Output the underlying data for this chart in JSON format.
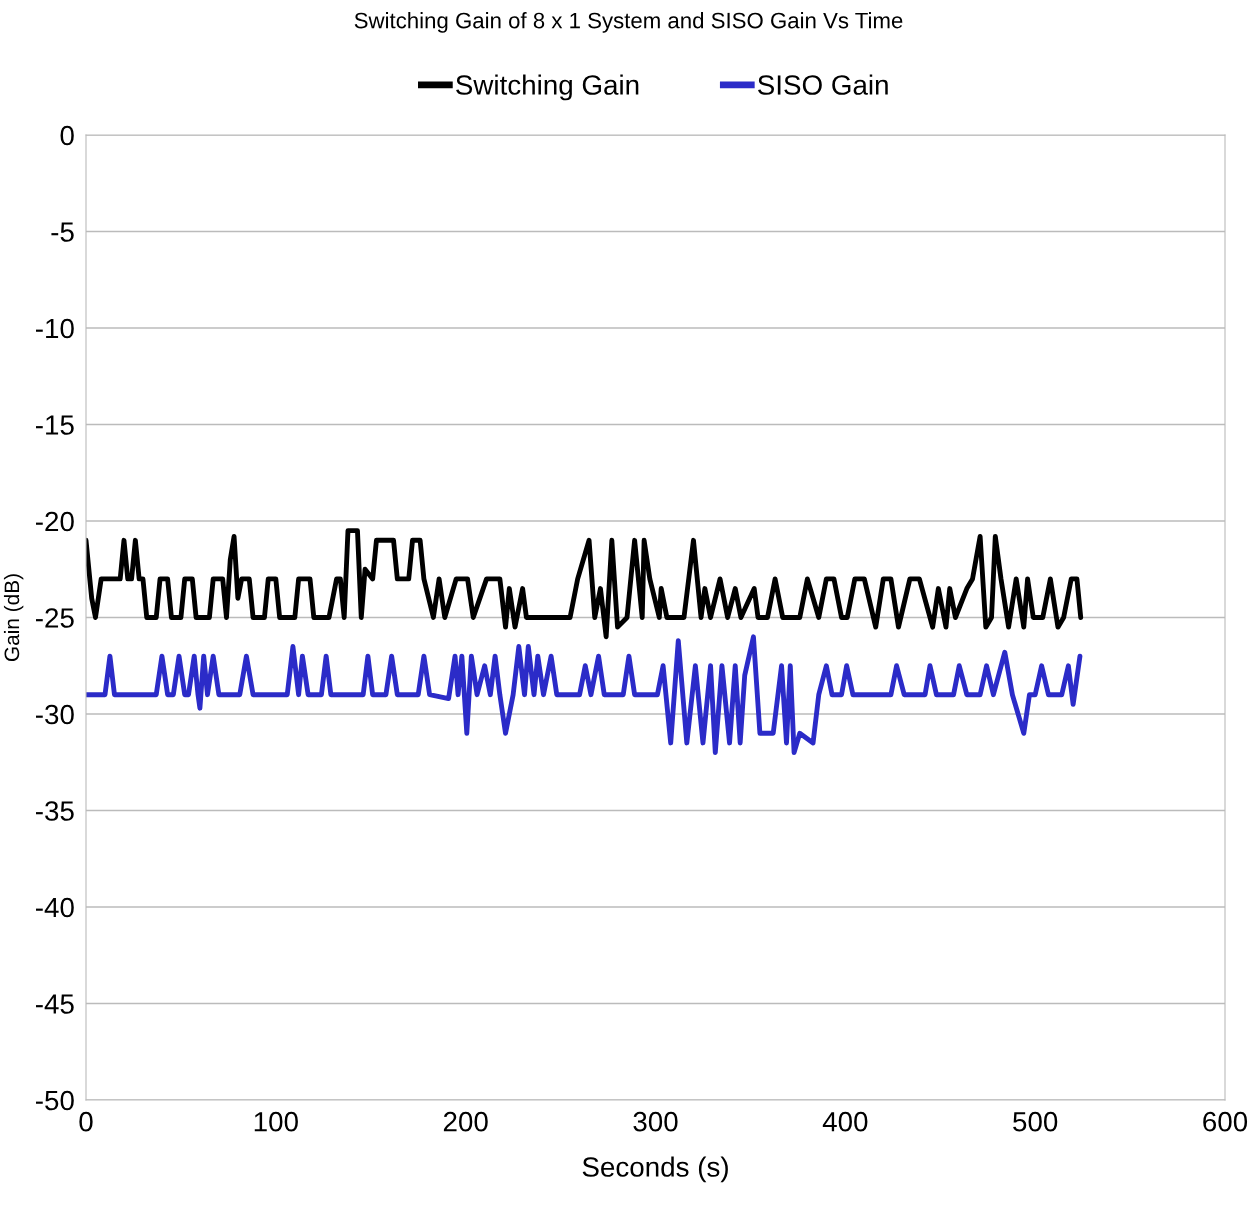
{
  "chart_data": {
    "type": "line",
    "title": "Switching Gain of 8 x 1 System and SISO Gain Vs Time",
    "xlabel": "Seconds (s)",
    "ylabel": "Gain (dB)",
    "xlim": [
      0,
      600
    ],
    "xticks": [
      0,
      100,
      200,
      300,
      400,
      500,
      600
    ],
    "ylim": [
      -50,
      0
    ],
    "yticks": [
      -50,
      -45,
      -40,
      -35,
      -30,
      -25,
      -20,
      -15,
      -10,
      -5,
      0
    ],
    "grid": "y",
    "legend": "top",
    "marker": "none",
    "line_style": "solid",
    "series": [
      {
        "name": "Switching Gain",
        "color": "#000000",
        "x": [
          0,
          3,
          5,
          8,
          18,
          20,
          22,
          24,
          26,
          28,
          30,
          32,
          37,
          39,
          43,
          45,
          50,
          52,
          56,
          58,
          65,
          67,
          72,
          74,
          76,
          78,
          80,
          82,
          86,
          88,
          94,
          96,
          100,
          102,
          110,
          112,
          118,
          120,
          128,
          132,
          134,
          136,
          138,
          143,
          145,
          147,
          151,
          153,
          162,
          164,
          170,
          172,
          176,
          178,
          183,
          186,
          189,
          195,
          201,
          204,
          211,
          218,
          221,
          223,
          226,
          230,
          232,
          255,
          259,
          265,
          268,
          271,
          274,
          277,
          280,
          285,
          289,
          293,
          294,
          297,
          302,
          303,
          306,
          315,
          320,
          324,
          326,
          329,
          334,
          338,
          342,
          345,
          352,
          354,
          359,
          363,
          367,
          376,
          380,
          386,
          390,
          394,
          398,
          401,
          405,
          410,
          416,
          420,
          424,
          428,
          434,
          439,
          446,
          449,
          453,
          455,
          458,
          464,
          467,
          471,
          474,
          477,
          479,
          482,
          486,
          490,
          494,
          496,
          499,
          504,
          508,
          512,
          515,
          519,
          522,
          524
        ],
        "values": [
          -21,
          -24,
          -25,
          -23,
          -23,
          -21,
          -23,
          -23,
          -21,
          -23,
          -23,
          -25,
          -25,
          -23,
          -23,
          -25,
          -25,
          -23,
          -23,
          -25,
          -25,
          -23,
          -23,
          -25,
          -22,
          -20.8,
          -24,
          -23,
          -23,
          -25,
          -25,
          -23,
          -23,
          -25,
          -25,
          -23,
          -23,
          -25,
          -25,
          -23,
          -23,
          -25,
          -20.5,
          -20.5,
          -25,
          -22.5,
          -23,
          -21,
          -21,
          -23,
          -23,
          -21,
          -21,
          -23,
          -25,
          -23,
          -25,
          -23,
          -23,
          -25,
          -23,
          -23,
          -25.5,
          -23.5,
          -25.5,
          -23.5,
          -25,
          -25,
          -23,
          -21,
          -25,
          -23.5,
          -26,
          -21,
          -25.5,
          -25,
          -21,
          -25,
          -21,
          -23,
          -25,
          -23.5,
          -25,
          -25,
          -21,
          -25,
          -23.5,
          -25,
          -23,
          -25,
          -23.5,
          -25,
          -23.5,
          -25,
          -25,
          -23,
          -25,
          -25,
          -23,
          -25,
          -23,
          -23,
          -25,
          -25,
          -23,
          -23,
          -25.5,
          -23,
          -23,
          -25.5,
          -23,
          -23,
          -25.5,
          -23.5,
          -25.5,
          -23.5,
          -25,
          -23.5,
          -23,
          -20.8,
          -25.5,
          -25,
          -20.8,
          -23,
          -25.5,
          -23,
          -25.5,
          -23,
          -25,
          -25,
          -23,
          -25.5,
          -25,
          -23,
          -23,
          -25
        ]
      },
      {
        "name": "SISO Gain",
        "color": "#2b2bc8",
        "x": [
          0,
          10,
          12.6,
          15,
          37,
          40,
          43,
          46,
          49,
          52,
          54,
          57,
          59,
          60,
          62,
          64,
          67,
          70,
          81,
          84.5,
          88,
          106,
          109,
          112,
          114,
          117,
          124,
          126.5,
          129,
          146,
          148.5,
          151,
          158,
          161,
          164,
          175,
          178,
          181,
          191,
          194.4,
          196,
          198,
          200.6,
          203,
          206,
          210,
          213,
          215.5,
          218,
          221,
          225,
          228,
          231,
          233,
          236,
          238,
          241,
          245,
          248,
          260,
          263,
          266,
          270,
          273,
          283,
          286,
          289,
          301,
          304,
          308,
          312,
          316.5,
          321,
          325,
          329,
          331.5,
          335,
          339,
          342,
          344.6,
          347,
          351.6,
          355,
          362,
          366.4,
          369,
          371,
          373,
          376,
          383,
          386,
          390,
          393,
          398,
          400.7,
          404,
          424,
          427,
          431,
          442,
          444.6,
          448,
          457,
          460,
          464,
          471,
          474.4,
          478,
          484,
          488,
          494,
          497,
          500,
          503.4,
          507,
          514,
          517.5,
          520,
          523.6
        ],
        "values": [
          -29,
          -29,
          -27,
          -29,
          -29,
          -27,
          -29,
          -29,
          -27,
          -29,
          -29,
          -27,
          -29,
          -29.7,
          -27,
          -29,
          -27,
          -29,
          -29,
          -27,
          -29,
          -29,
          -26.5,
          -29,
          -27,
          -29,
          -29,
          -27,
          -29,
          -29,
          -27,
          -29,
          -29,
          -27,
          -29,
          -29,
          -27,
          -29,
          -29.2,
          -27,
          -29,
          -27,
          -31,
          -27,
          -29,
          -27.5,
          -29,
          -27,
          -29,
          -31,
          -29,
          -26.5,
          -29,
          -26.5,
          -29,
          -27,
          -29,
          -27,
          -29,
          -29,
          -27.5,
          -29,
          -27,
          -29,
          -29,
          -27,
          -29,
          -29,
          -27.5,
          -31.5,
          -26.2,
          -31.5,
          -27.5,
          -31.5,
          -27.5,
          -32,
          -27.5,
          -31.5,
          -27.5,
          -31.5,
          -28,
          -26,
          -31,
          -31,
          -27.5,
          -31.5,
          -27.5,
          -32,
          -31,
          -31.5,
          -29,
          -27.5,
          -29,
          -29,
          -27.5,
          -29,
          -29,
          -27.5,
          -29,
          -29,
          -27.5,
          -29,
          -29,
          -27.5,
          -29,
          -29,
          -27.5,
          -29,
          -26.8,
          -29,
          -31,
          -29,
          -29,
          -27.5,
          -29,
          -29,
          -27.5,
          -29.5,
          -27
        ]
      }
    ]
  }
}
